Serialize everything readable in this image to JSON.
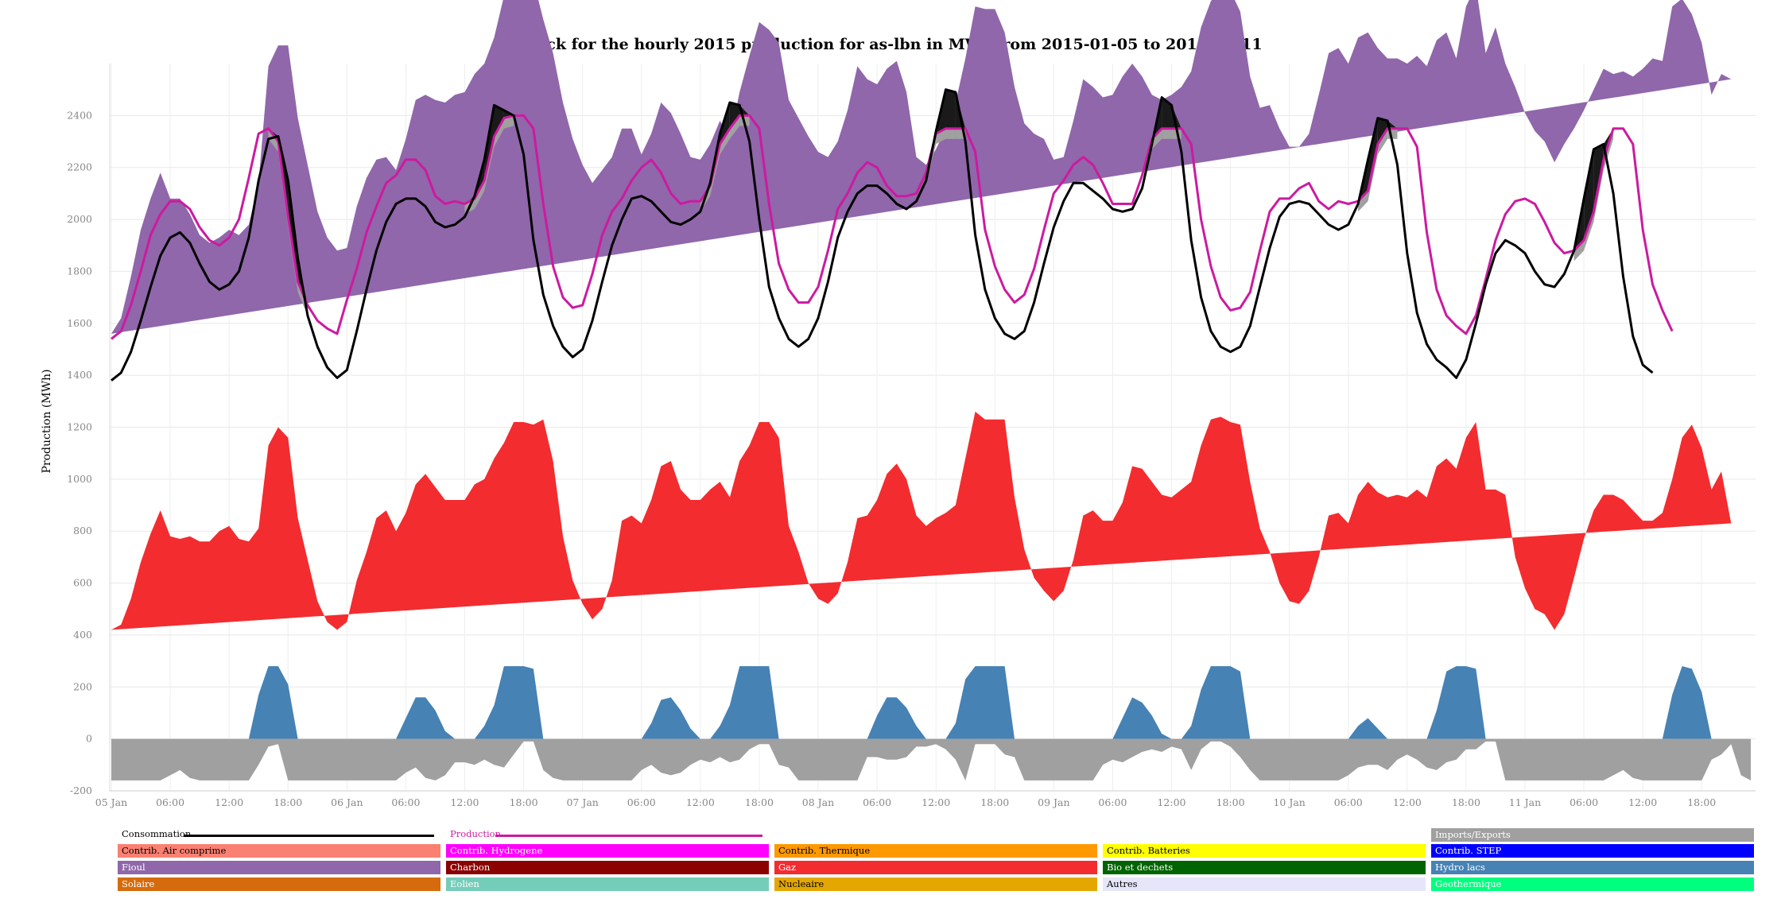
{
  "chart_data": {
    "type": "area",
    "title": "Stack for the hourly 2015 production for as-lbn in MWe from 2015-01-05 to 2015-01-11",
    "ylabel": "Production (MWh)",
    "xlabel": "",
    "ylim": [
      -200,
      2600
    ],
    "yticks": [
      -200,
      0,
      200,
      400,
      600,
      800,
      1000,
      1200,
      1400,
      1600,
      1800,
      2000,
      2200,
      2400
    ],
    "xticks": [
      {
        "h": 0,
        "label": "05 Jan"
      },
      {
        "h": 6,
        "label": "06:00"
      },
      {
        "h": 12,
        "label": "12:00"
      },
      {
        "h": 18,
        "label": "18:00"
      },
      {
        "h": 24,
        "label": "06 Jan"
      },
      {
        "h": 30,
        "label": "06:00"
      },
      {
        "h": 36,
        "label": "12:00"
      },
      {
        "h": 42,
        "label": "18:00"
      },
      {
        "h": 48,
        "label": "07 Jan"
      },
      {
        "h": 54,
        "label": "06:00"
      },
      {
        "h": 60,
        "label": "12:00"
      },
      {
        "h": 66,
        "label": "18:00"
      },
      {
        "h": 72,
        "label": "08 Jan"
      },
      {
        "h": 78,
        "label": "06:00"
      },
      {
        "h": 84,
        "label": "12:00"
      },
      {
        "h": 90,
        "label": "18:00"
      },
      {
        "h": 96,
        "label": "09 Jan"
      },
      {
        "h": 102,
        "label": "06:00"
      },
      {
        "h": 108,
        "label": "12:00"
      },
      {
        "h": 114,
        "label": "18:00"
      },
      {
        "h": 120,
        "label": "10 Jan"
      },
      {
        "h": 126,
        "label": "06:00"
      },
      {
        "h": 132,
        "label": "12:00"
      },
      {
        "h": 138,
        "label": "18:00"
      },
      {
        "h": 144,
        "label": "11 Jan"
      },
      {
        "h": 150,
        "label": "06:00"
      },
      {
        "h": 156,
        "label": "12:00"
      },
      {
        "h": 162,
        "label": "18:00"
      }
    ],
    "grid": true,
    "legend_position": "bottom",
    "hours": 168,
    "series": [
      {
        "name": "Hydro lacs",
        "color": "#4682b4",
        "values": [
          0,
          0,
          0,
          0,
          0,
          0,
          0,
          0,
          0,
          0,
          0,
          0,
          0,
          0,
          0,
          170,
          280,
          280,
          210,
          0,
          0,
          0,
          0,
          0,
          0,
          0,
          0,
          0,
          0,
          0,
          80,
          160,
          160,
          110,
          30,
          0,
          0,
          0,
          50,
          130,
          280,
          280,
          280,
          270,
          0,
          0,
          0,
          0,
          0,
          0,
          0,
          0,
          0,
          0,
          0,
          60,
          150,
          160,
          110,
          40,
          0,
          0,
          50,
          130,
          280,
          280,
          280,
          280,
          0,
          0,
          0,
          0,
          0,
          0,
          0,
          0,
          0,
          0,
          90,
          160,
          160,
          120,
          50,
          0,
          0,
          0,
          60,
          230,
          280,
          280,
          280,
          280,
          0,
          0,
          0,
          0,
          0,
          0,
          0,
          0,
          0,
          0,
          0,
          80,
          160,
          140,
          90,
          20,
          0,
          0,
          50,
          190,
          280,
          280,
          280,
          260,
          0,
          0,
          0,
          0,
          0,
          0,
          0,
          0,
          0,
          0,
          0,
          50,
          80,
          40,
          0,
          0,
          0,
          0,
          0,
          110,
          260,
          280,
          280,
          270,
          0,
          0,
          0,
          0,
          0,
          0,
          0,
          0,
          0,
          0,
          0,
          0,
          0,
          0,
          0,
          0,
          0,
          0,
          0,
          170,
          280,
          270,
          180,
          0,
          0,
          0
        ]
      },
      {
        "name": "Gaz",
        "color": "#f32c2f",
        "values": [
          420,
          440,
          540,
          680,
          790,
          880,
          780,
          770,
          780,
          760,
          760,
          800,
          820,
          770,
          760,
          640,
          850,
          920,
          950,
          850,
          690,
          530,
          450,
          420,
          450,
          610,
          720,
          850,
          880,
          800,
          790,
          820,
          860,
          860,
          890,
          920,
          920,
          980,
          950,
          950,
          860,
          940,
          940,
          940,
          1230,
          1070,
          780,
          610,
          520,
          460,
          500,
          610,
          840,
          860,
          830,
          860,
          900,
          910,
          850,
          880,
          920,
          960,
          940,
          800,
          790,
          850,
          940,
          940,
          1160,
          820,
          720,
          600,
          540,
          520,
          560,
          680,
          850,
          860,
          830,
          860,
          900,
          880,
          810,
          820,
          850,
          870,
          840,
          850,
          980,
          950,
          950,
          950,
          930,
          730,
          620,
          570,
          530,
          570,
          690,
          860,
          880,
          840,
          840,
          830,
          890,
          900,
          900,
          920,
          930,
          960,
          940,
          940,
          950,
          960,
          940,
          950,
          990,
          810,
          720,
          600,
          530,
          520,
          570,
          700,
          860,
          870,
          830,
          890,
          910,
          910,
          930,
          940,
          930,
          960,
          930,
          940,
          820,
          760,
          880,
          950,
          960,
          960,
          940,
          700,
          580,
          500,
          480,
          420,
          480,
          620,
          770,
          880,
          940,
          940,
          920,
          880,
          840,
          840,
          870,
          830,
          880,
          940,
          940,
          960,
          1030,
          830,
          640,
          530,
          440
        ]
      },
      {
        "name": "Fioul",
        "color": "#9067aa",
        "values": [
          1140,
          1180,
          1240,
          1280,
          1290,
          1300,
          1300,
          1310,
          1240,
          1180,
          1150,
          1130,
          1140,
          1170,
          1220,
          1330,
          1460,
          1470,
          1510,
          1540,
          1520,
          1500,
          1480,
          1460,
          1440,
          1440,
          1440,
          1380,
          1360,
          1390,
          1440,
          1480,
          1460,
          1490,
          1530,
          1560,
          1570,
          1580,
          1600,
          1620,
          1720,
          1780,
          1780,
          1710,
          1540,
          1570,
          1670,
          1700,
          1690,
          1680,
          1690,
          1630,
          1510,
          1490,
          1420,
          1410,
          1400,
          1340,
          1370,
          1320,
          1310,
          1330,
          1390,
          1380,
          1420,
          1500,
          1540,
          1510,
          1520,
          1640,
          1670,
          1720,
          1720,
          1720,
          1740,
          1740,
          1740,
          1680,
          1600,
          1560,
          1550,
          1490,
          1380,
          1390,
          1420,
          1480,
          1550,
          1540,
          1560,
          1580,
          1580,
          1490,
          1580,
          1640,
          1710,
          1740,
          1700,
          1670,
          1690,
          1680,
          1630,
          1630,
          1640,
          1640,
          1550,
          1510,
          1490,
          1520,
          1550,
          1550,
          1580,
          1610,
          1610,
          1650,
          1660,
          1590,
          1560,
          1620,
          1720,
          1750,
          1750,
          1760,
          1760,
          1780,
          1780,
          1790,
          1770,
          1760,
          1730,
          1710,
          1690,
          1680,
          1670,
          1670,
          1660,
          1640,
          1640,
          1580,
          1660,
          1680,
          1680,
          1780,
          1660,
          1810,
          1830,
          1840,
          1820,
          1800,
          1810,
          1730,
          1650,
          1620,
          1640,
          1620,
          1650,
          1670,
          1740,
          1780,
          1740,
          1820,
          1690,
          1580,
          1560,
          1520,
          1530,
          1710,
          1640,
          1500,
          1500,
          1550,
          1460,
          1660,
          1700,
          1570
        ]
      },
      {
        "name": "Imports/Exports",
        "color": "#a0a0a0",
        "values": [
          -160,
          -160,
          -160,
          -160,
          -160,
          -160,
          -140,
          -120,
          -150,
          -160,
          -160,
          -160,
          -160,
          -160,
          -160,
          -100,
          -30,
          -20,
          -160,
          -160,
          -160,
          -160,
          -160,
          -160,
          -160,
          -160,
          -160,
          -160,
          -160,
          -160,
          -130,
          -110,
          -150,
          -160,
          -140,
          -90,
          -90,
          -100,
          -80,
          -100,
          -110,
          -60,
          -10,
          -10,
          -120,
          -150,
          -160,
          -160,
          -160,
          -160,
          -160,
          -160,
          -160,
          -160,
          -120,
          -100,
          -130,
          -140,
          -130,
          -100,
          -80,
          -90,
          -70,
          -90,
          -80,
          -40,
          -20,
          -20,
          -100,
          -110,
          -160,
          -160,
          -160,
          -160,
          -160,
          -160,
          -160,
          -70,
          -70,
          -80,
          -80,
          -70,
          -30,
          -30,
          -20,
          -40,
          -80,
          -160,
          -20,
          -20,
          -20,
          -60,
          -70,
          -160,
          -160,
          -160,
          -160,
          -160,
          -160,
          -160,
          -160,
          -100,
          -80,
          -90,
          -70,
          -50,
          -40,
          -50,
          -30,
          -40,
          -120,
          -40,
          -10,
          -10,
          -30,
          -70,
          -120,
          -160,
          -160,
          -160,
          -160,
          -160,
          -160,
          -160,
          -160,
          -160,
          -140,
          -110,
          -100,
          -100,
          -120,
          -80,
          -60,
          -80,
          -110,
          -120,
          -90,
          -80,
          -40,
          -40,
          -10,
          -10,
          -160,
          -160,
          -160,
          -160,
          -160,
          -160,
          -160,
          -160,
          -160,
          -160,
          -160,
          -140,
          -120,
          -150,
          -160,
          -160,
          -160,
          -160,
          -160,
          -160,
          -160,
          -80,
          -60,
          -20,
          -140,
          -160,
          -160,
          -160
        ]
      },
      {
        "name": "Production",
        "color": "#cc1aa0",
        "line": true,
        "values": [
          1540,
          1570,
          1670,
          1800,
          1940,
          2020,
          2070,
          2070,
          2040,
          1970,
          1920,
          1900,
          1930,
          2000,
          2160,
          2330,
          2350,
          2300,
          2010,
          1760,
          1670,
          1610,
          1580,
          1560,
          1690,
          1810,
          1950,
          2050,
          2140,
          2170,
          2230,
          2230,
          2190,
          2090,
          2060,
          2070,
          2060,
          2080,
          2150,
          2320,
          2390,
          2400,
          2400,
          2350,
          2060,
          1820,
          1700,
          1660,
          1670,
          1790,
          1940,
          2030,
          2080,
          2150,
          2200,
          2230,
          2180,
          2100,
          2060,
          2070,
          2070,
          2130,
          2290,
          2350,
          2400,
          2400,
          2350,
          2060,
          1830,
          1730,
          1680,
          1680,
          1740,
          1880,
          2040,
          2100,
          2180,
          2220,
          2200,
          2130,
          2090,
          2090,
          2100,
          2180,
          2330,
          2350,
          2350,
          2350,
          2260,
          1960,
          1820,
          1730,
          1680,
          1710,
          1810,
          1960,
          2100,
          2150,
          2210,
          2240,
          2210,
          2140,
          2060,
          2060,
          2060,
          2170,
          2310,
          2350,
          2350,
          2350,
          2290,
          2000,
          1820,
          1700,
          1650,
          1660,
          1720,
          1880,
          2030,
          2080,
          2080,
          2120,
          2140,
          2070,
          2040,
          2070,
          2060,
          2070,
          2110,
          2290,
          2350,
          2350,
          2350,
          2280,
          1950,
          1730,
          1630,
          1590,
          1560,
          1630,
          1770,
          1920,
          2020,
          2070,
          2080,
          2060,
          1990,
          1910,
          1870,
          1880,
          1920,
          2030,
          2230,
          2350,
          2350,
          2290,
          1960,
          1750,
          1650,
          1570
        ]
      },
      {
        "name": "Consommation",
        "color": "#000000",
        "line": true,
        "values": [
          1380,
          1410,
          1490,
          1610,
          1740,
          1860,
          1930,
          1950,
          1910,
          1830,
          1760,
          1730,
          1750,
          1800,
          1930,
          2150,
          2310,
          2320,
          2150,
          1850,
          1630,
          1510,
          1430,
          1390,
          1420,
          1570,
          1730,
          1880,
          1990,
          2060,
          2080,
          2080,
          2050,
          1990,
          1970,
          1980,
          2010,
          2090,
          2230,
          2440,
          2420,
          2400,
          2250,
          1920,
          1710,
          1590,
          1510,
          1470,
          1500,
          1610,
          1760,
          1900,
          2000,
          2080,
          2090,
          2070,
          2030,
          1990,
          1980,
          2000,
          2030,
          2140,
          2330,
          2450,
          2440,
          2300,
          2000,
          1740,
          1620,
          1540,
          1510,
          1540,
          1620,
          1760,
          1930,
          2030,
          2100,
          2130,
          2130,
          2100,
          2060,
          2040,
          2070,
          2150,
          2340,
          2500,
          2490,
          2300,
          1940,
          1730,
          1620,
          1560,
          1540,
          1570,
          1680,
          1830,
          1970,
          2070,
          2140,
          2140,
          2110,
          2080,
          2040,
          2030,
          2040,
          2120,
          2290,
          2470,
          2440,
          2260,
          1920,
          1700,
          1570,
          1510,
          1490,
          1510,
          1590,
          1740,
          1890,
          2010,
          2060,
          2070,
          2060,
          2020,
          1980,
          1960,
          1980,
          2060,
          2230,
          2390,
          2380,
          2210,
          1870,
          1640,
          1520,
          1460,
          1430,
          1390,
          1460,
          1600,
          1750,
          1870,
          1920,
          1900,
          1870,
          1800,
          1750,
          1740,
          1790,
          1880,
          2080,
          2270,
          2290,
          2100,
          1780,
          1550,
          1440,
          1410
        ]
      }
    ]
  },
  "legend": {
    "consommation": {
      "label": "Consommation",
      "color": "#000000"
    },
    "production": {
      "label": "Production",
      "color": "#cc1aa0"
    },
    "imports": {
      "label": "Imports/Exports",
      "color": "#a0a0a0"
    },
    "rows": [
      [
        {
          "label": "Contrib. Air comprime",
          "color": "#fa8072"
        },
        {
          "label": "Contrib. Hydrogene",
          "color": "#ff00ff"
        },
        {
          "label": "Contrib. Thermique",
          "color": "#ff9900"
        },
        {
          "label": "Contrib. Batteries",
          "color": "#ffff00"
        },
        {
          "label": "Contrib. STEP",
          "color": "#0000ff"
        }
      ],
      [
        {
          "label": "Fioul",
          "color": "#9067aa"
        },
        {
          "label": "Charbon",
          "color": "#8b0000"
        },
        {
          "label": "Gaz",
          "color": "#f32c2f"
        },
        {
          "label": "Bio et dechets",
          "color": "#006400"
        },
        {
          "label": "Hydro lacs",
          "color": "#4682b4"
        }
      ],
      [
        {
          "label": "Solaire",
          "color": "#d66b0d"
        },
        {
          "label": "Eolien",
          "color": "#74cdb9"
        },
        {
          "label": "Nucleaire",
          "color": "#e4a701"
        },
        {
          "label": "Autres",
          "color": "#e6e6fa"
        },
        {
          "label": "Geothermique",
          "color": "#00ff7f"
        }
      ]
    ]
  }
}
